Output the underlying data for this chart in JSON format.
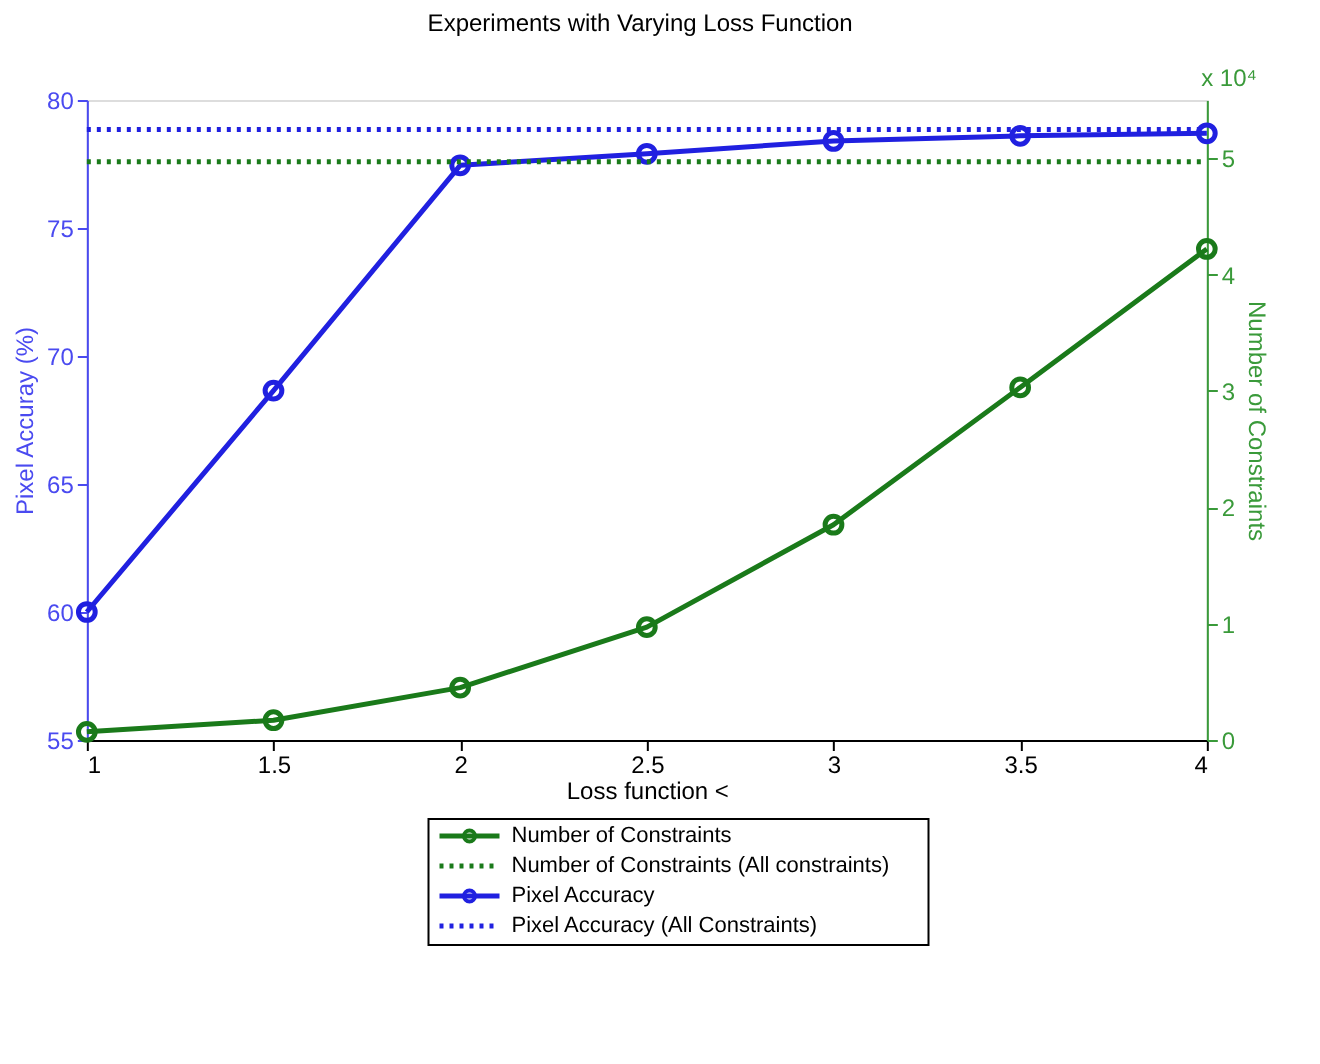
{
  "chart_data": {
    "type": "line",
    "title": "Experiments with Varying Loss Function",
    "xlabel": "Loss function <",
    "ylabel": "Pixel Accuray (%)",
    "y2label": "Number of Constraints",
    "x": [
      1,
      1.5,
      2,
      2.5,
      3,
      3.5,
      4
    ],
    "series": [
      {
        "name": "Number of Constraints",
        "color": "#1a7a1a",
        "axis": "y2",
        "marker": "circle",
        "line_style": "solid",
        "values": [
          0.07,
          0.17,
          0.45,
          0.97,
          1.85,
          3.03,
          4.22
        ]
      },
      {
        "name": "Pixel Accuracy",
        "color": "#2020e0",
        "axis": "y",
        "marker": "circle",
        "line_style": "solid",
        "values": [
          60.0,
          68.65,
          77.45,
          77.9,
          78.4,
          78.6,
          78.7
        ]
      }
    ],
    "ref_lines": [
      {
        "axis": "y2",
        "value": 4.97,
        "label": "Number of Constraints (All constraints)",
        "color": "#1a7a1a",
        "line_style": "dotted"
      },
      {
        "axis": "y",
        "value": 78.85,
        "label": "Pixel Accuracy (All Constraints)",
        "color": "#2020e0",
        "line_style": "dotted"
      }
    ],
    "xlim": [
      1,
      4
    ],
    "xticks": [
      1,
      1.5,
      2,
      2.5,
      3,
      3.5,
      4
    ],
    "ylim": [
      55,
      80
    ],
    "yticks": [
      55,
      60,
      65,
      70,
      75,
      80
    ],
    "y2lim": [
      0,
      5.5
    ],
    "y2ticks": [
      0,
      1,
      2,
      3,
      4,
      5
    ],
    "annotations": [
      "x 10⁴"
    ],
    "grid": false,
    "legend": "bottom"
  }
}
